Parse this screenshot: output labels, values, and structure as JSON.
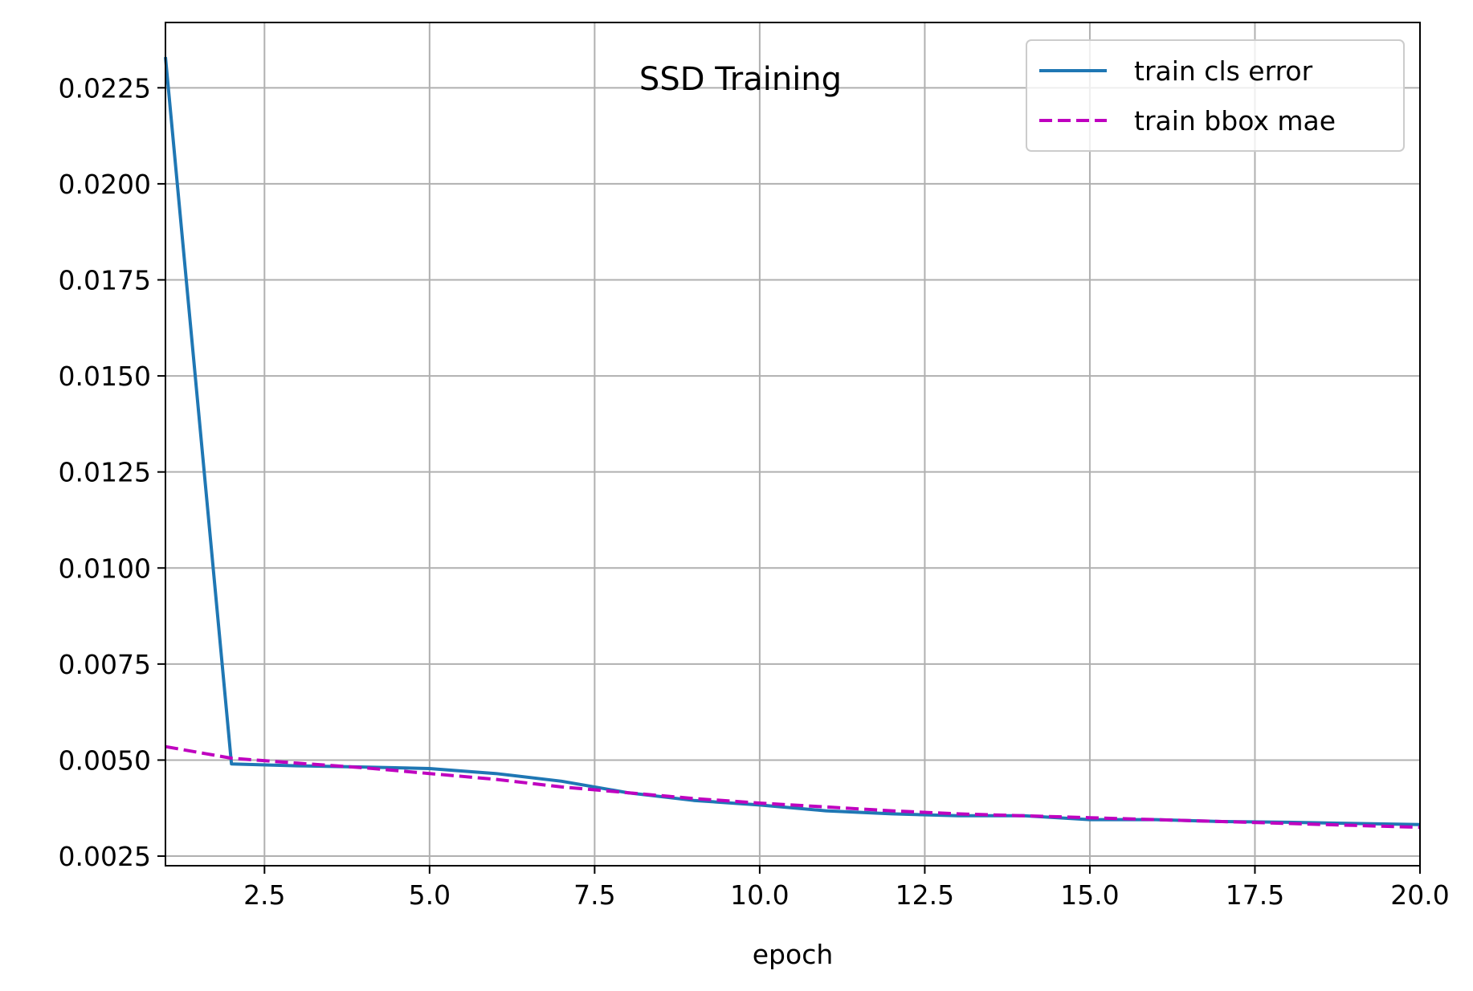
{
  "chart_data": {
    "type": "line",
    "title": "SSD Training",
    "xlabel": "epoch",
    "ylabel": "",
    "xlim": [
      1,
      20
    ],
    "ylim": [
      0.00225,
      0.0242
    ],
    "grid": true,
    "legend_position": "top-right",
    "x_ticks": [
      2.5,
      5.0,
      7.5,
      10.0,
      12.5,
      15.0,
      17.5,
      20.0
    ],
    "x_tick_labels": [
      "2.5",
      "5.0",
      "7.5",
      "10.0",
      "12.5",
      "15.0",
      "17.5",
      "20.0"
    ],
    "y_ticks": [
      0.0025,
      0.005,
      0.0075,
      0.01,
      0.0125,
      0.015,
      0.0175,
      0.02,
      0.0225
    ],
    "y_tick_labels": [
      "0.0025",
      "0.0050",
      "0.0075",
      "0.0100",
      "0.0125",
      "0.0150",
      "0.0175",
      "0.0200",
      "0.0225"
    ],
    "x": [
      1,
      2,
      3,
      4,
      5,
      6,
      7,
      8,
      9,
      10,
      11,
      12,
      13,
      14,
      15,
      16,
      17,
      18,
      19,
      20
    ],
    "series": [
      {
        "name": "train cls error",
        "color": "#1f77b4",
        "dash": "solid",
        "values": [
          0.0233,
          0.0049,
          0.00485,
          0.00482,
          0.00478,
          0.00465,
          0.00445,
          0.00415,
          0.00395,
          0.00383,
          0.00368,
          0.0036,
          0.00355,
          0.00355,
          0.00345,
          0.00345,
          0.0034,
          0.00338,
          0.00335,
          0.00332
        ]
      },
      {
        "name": "train bbox mae",
        "color": "#bf00bf",
        "dash": "dashed",
        "values": [
          0.00535,
          0.00505,
          0.00492,
          0.0048,
          0.00465,
          0.0045,
          0.0043,
          0.00415,
          0.004,
          0.00388,
          0.00378,
          0.00368,
          0.0036,
          0.00355,
          0.0035,
          0.00345,
          0.0034,
          0.00335,
          0.0033,
          0.00325
        ]
      }
    ]
  }
}
